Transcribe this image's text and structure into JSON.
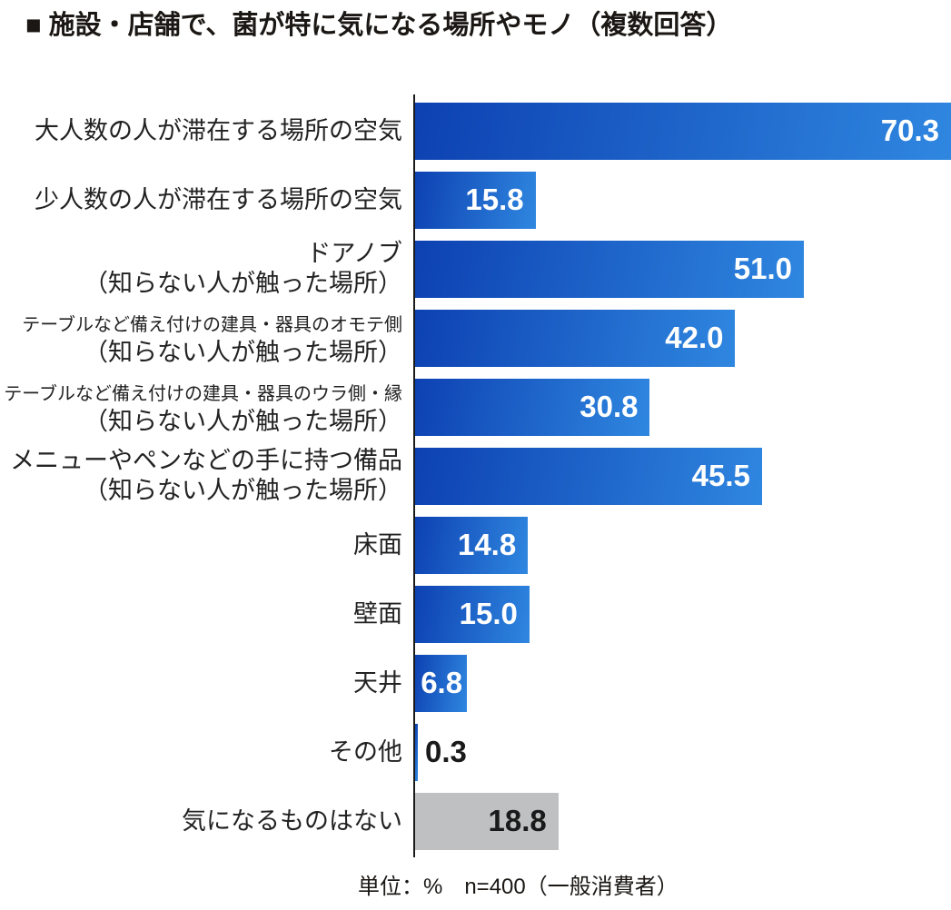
{
  "title": "■ 施設・店舗で、菌が特に気になる場所やモノ（複数回答）",
  "footer": "単位：%　n=400（一般消費者）",
  "colors": {
    "bar_gradient_start": "#0d41b2",
    "bar_gradient_end": "#2f87e0",
    "gray_bar": "#bfc0c2",
    "axis": "#1a1a1a",
    "value_text_inside_blue": "#ffffff",
    "value_text_dark": "#1a1a1a",
    "label_text": "#222222",
    "title_text": "#1a1714"
  },
  "chart_data": {
    "type": "bar",
    "orientation": "horizontal",
    "title": "施設・店舗で、菌が特に気になる場所やモノ（複数回答）",
    "unit": "%",
    "sample": "n=400（一般消費者）",
    "xlim": [
      0,
      70.3
    ],
    "grid": false,
    "legend": "none",
    "categories": [
      "大人数の人が滞在する場所の空気",
      "少人数の人が滞在する場所の空気",
      "ドアノブ（知らない人が触った場所）",
      "テーブルなど備え付けの建具・器具のオモテ側（知らない人が触った場所）",
      "テーブルなど備え付けの建具・器具のウラ側・縁（知らない人が触った場所）",
      "メニューやペンなどの手に持つ備品（知らない人が触った場所）",
      "床面",
      "壁面",
      "天井",
      "その他",
      "気になるものはない"
    ],
    "values": [
      70.3,
      15.8,
      51.0,
      42.0,
      30.8,
      45.5,
      14.8,
      15.0,
      6.8,
      0.3,
      18.8
    ]
  },
  "bars": [
    {
      "label_lines": [
        "大人数の人が滞在する場所の空気"
      ],
      "value": 70.3,
      "value_label": "70.3",
      "color": "blue",
      "value_position": "inside"
    },
    {
      "label_lines": [
        "少人数の人が滞在する場所の空気"
      ],
      "value": 15.8,
      "value_label": "15.8",
      "color": "blue",
      "value_position": "inside"
    },
    {
      "label_lines": [
        "ドアノブ",
        "（知らない人が触った場所）"
      ],
      "value": 51.0,
      "value_label": "51.0",
      "color": "blue",
      "value_position": "inside"
    },
    {
      "label_lines": [
        "テーブルなど備え付けの建具・器具のオモテ側",
        "（知らない人が触った場所）"
      ],
      "value": 42.0,
      "value_label": "42.0",
      "color": "blue",
      "value_position": "inside"
    },
    {
      "label_lines": [
        "テーブルなど備え付けの建具・器具のウラ側・縁",
        "（知らない人が触った場所）"
      ],
      "value": 30.8,
      "value_label": "30.8",
      "color": "blue",
      "value_position": "inside"
    },
    {
      "label_lines": [
        "メニューやペンなどの手に持つ備品",
        "（知らない人が触った場所）"
      ],
      "value": 45.5,
      "value_label": "45.5",
      "color": "blue",
      "value_position": "inside"
    },
    {
      "label_lines": [
        "床面"
      ],
      "value": 14.8,
      "value_label": "14.8",
      "color": "blue",
      "value_position": "inside"
    },
    {
      "label_lines": [
        "壁面"
      ],
      "value": 15.0,
      "value_label": "15.0",
      "color": "blue",
      "value_position": "inside"
    },
    {
      "label_lines": [
        "天井"
      ],
      "value": 6.8,
      "value_label": "6.8",
      "color": "blue",
      "value_position": "inside"
    },
    {
      "label_lines": [
        "その他"
      ],
      "value": 0.3,
      "value_label": "0.3",
      "color": "blue",
      "value_position": "outside"
    },
    {
      "label_lines": [
        "気になるものはない"
      ],
      "value": 18.8,
      "value_label": "18.8",
      "color": "gray",
      "value_position": "inside"
    }
  ]
}
